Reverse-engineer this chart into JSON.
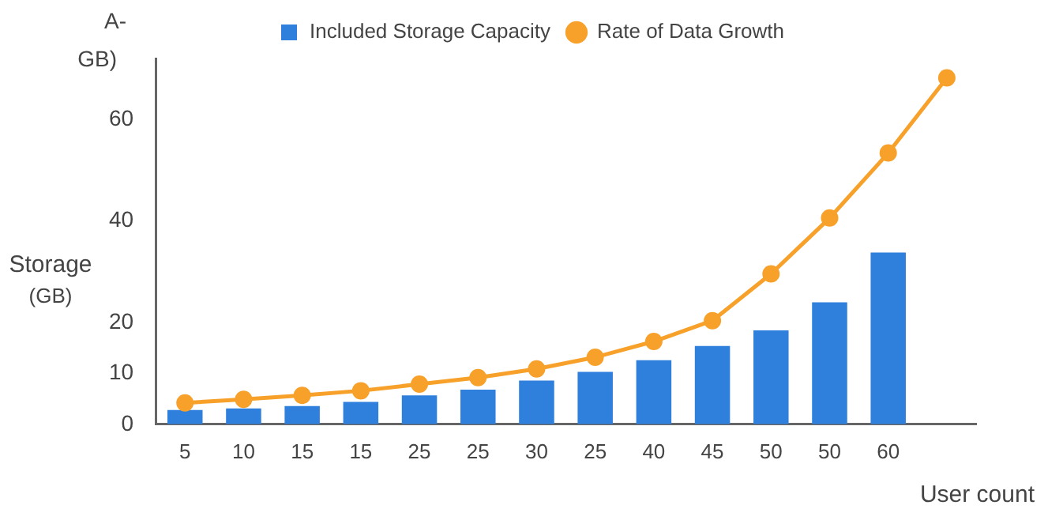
{
  "chart_data": {
    "type": "bar",
    "xlabel": "User count",
    "ylabel": "Storage (GB)",
    "categories": [
      "5",
      "10",
      "15",
      "15",
      "25",
      "25",
      "30",
      "25",
      "40",
      "45",
      "50",
      "50",
      "60",
      null
    ],
    "series": [
      {
        "name": "Included Storage Capacity",
        "color": "#2f7fdc",
        "values": [
          2.8,
          3.1,
          3.6,
          4.4,
          5.7,
          6.8,
          8.6,
          10.3,
          12.6,
          15.4,
          18.5,
          24,
          33.8,
          null
        ]
      },
      {
        "name": "Rate of Data Growth",
        "type": "line",
        "color": "#f7a12a",
        "values": [
          4.2,
          4.9,
          5.7,
          6.6,
          7.9,
          9.2,
          10.9,
          13.2,
          16.3,
          20.4,
          29.6,
          40.6,
          53.4,
          68.2
        ]
      }
    ],
    "ylim": [
      0,
      72
    ],
    "yticks": [
      0,
      10,
      20,
      40,
      60
    ],
    "legend": "top",
    "marker": "circle",
    "line_style": "solid",
    "annotations": [
      "A-",
      "GB)"
    ]
  }
}
